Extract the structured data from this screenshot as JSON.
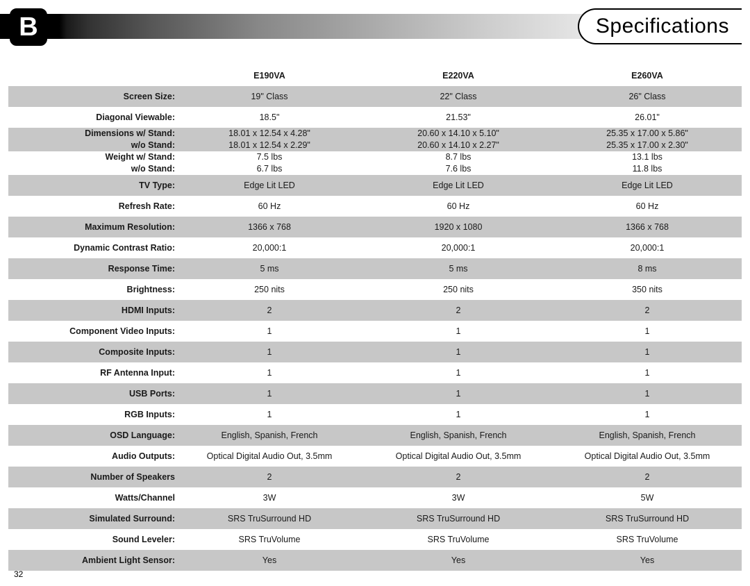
{
  "header": {
    "appendix_letter": "B",
    "title": "Specifications"
  },
  "page_number": "32",
  "models": [
    "E190VA",
    "E220VA",
    "E260VA"
  ],
  "rows": [
    {
      "label": "",
      "cells": [
        "E190VA",
        "E220VA",
        "E260VA"
      ],
      "bold": true,
      "shade": false
    },
    {
      "label": "Screen Size:",
      "cells": [
        "19\" Class",
        "22\" Class",
        "26\" Class"
      ],
      "shade": true
    },
    {
      "label": "Diagonal Viewable:",
      "cells": [
        "18.5\"",
        "21.53\"",
        "26.01\""
      ],
      "shade": false
    },
    {
      "label": "Dimensions w/ Stand:\nw/o Stand:",
      "cells": [
        "18.01 x 12.54 x 4.28\"\n18.01 x 12.54 x 2.29\"",
        "20.60 x 14.10 x 5.10\"\n20.60 x 14.10 x 2.27\"",
        "25.35 x 17.00 x 5.86\"\n25.35 x 17.00 x 2.30\""
      ],
      "shade": true,
      "multi": true
    },
    {
      "label": "Weight w/ Stand:\nw/o Stand:",
      "cells": [
        "7.5 lbs\n6.7 lbs",
        "8.7 lbs\n7.6 lbs",
        "13.1 lbs\n11.8 lbs"
      ],
      "shade": false,
      "multi": true
    },
    {
      "label": "TV Type:",
      "cells": [
        "Edge Lit LED",
        "Edge Lit LED",
        "Edge Lit LED"
      ],
      "shade": true
    },
    {
      "label": "Refresh Rate:",
      "cells": [
        "60 Hz",
        "60 Hz",
        "60 Hz"
      ],
      "shade": false
    },
    {
      "label": "Maximum Resolution:",
      "cells": [
        "1366 x 768",
        "1920 x 1080",
        "1366 x 768"
      ],
      "shade": true
    },
    {
      "label": "Dynamic Contrast Ratio:",
      "cells": [
        "20,000:1",
        "20,000:1",
        "20,000:1"
      ],
      "shade": false
    },
    {
      "label": "Response Time:",
      "cells": [
        "5 ms",
        "5 ms",
        "8 ms"
      ],
      "shade": true
    },
    {
      "label": "Brightness:",
      "cells": [
        "250 nits",
        "250 nits",
        "350 nits"
      ],
      "shade": false
    },
    {
      "label": "HDMI Inputs:",
      "cells": [
        "2",
        "2",
        "2"
      ],
      "shade": true
    },
    {
      "label": "Component Video Inputs:",
      "cells": [
        "1",
        "1",
        "1"
      ],
      "shade": false
    },
    {
      "label": "Composite Inputs:",
      "cells": [
        "1",
        "1",
        "1"
      ],
      "shade": true
    },
    {
      "label": "RF Antenna Input:",
      "cells": [
        "1",
        "1",
        "1"
      ],
      "shade": false
    },
    {
      "label": "USB Ports:",
      "cells": [
        "1",
        "1",
        "1"
      ],
      "shade": true
    },
    {
      "label": "RGB Inputs:",
      "cells": [
        "1",
        "1",
        "1"
      ],
      "shade": false
    },
    {
      "label": "OSD Language:",
      "cells": [
        "English, Spanish, French",
        "English, Spanish, French",
        "English, Spanish, French"
      ],
      "shade": true
    },
    {
      "label": "Audio Outputs:",
      "cells": [
        "Optical Digital Audio Out, 3.5mm",
        "Optical Digital Audio Out, 3.5mm",
        "Optical Digital Audio Out, 3.5mm"
      ],
      "shade": false
    },
    {
      "label": "Number of Speakers",
      "cells": [
        "2",
        "2",
        "2"
      ],
      "shade": true
    },
    {
      "label": "Watts/Channel",
      "cells": [
        "3W",
        "3W",
        "5W"
      ],
      "shade": false
    },
    {
      "label": "Simulated Surround:",
      "cells": [
        "SRS TruSurround HD",
        "SRS TruSurround HD",
        "SRS TruSurround HD"
      ],
      "shade": true
    },
    {
      "label": "Sound Leveler:",
      "cells": [
        "SRS TruVolume",
        "SRS TruVolume",
        "SRS TruVolume"
      ],
      "shade": false
    },
    {
      "label": "Ambient Light Sensor:",
      "cells": [
        "Yes",
        "Yes",
        "Yes"
      ],
      "shade": true
    }
  ],
  "colors": {
    "shade": "#c7c7c7",
    "text": "#1a1a1a",
    "background": "#ffffff"
  }
}
